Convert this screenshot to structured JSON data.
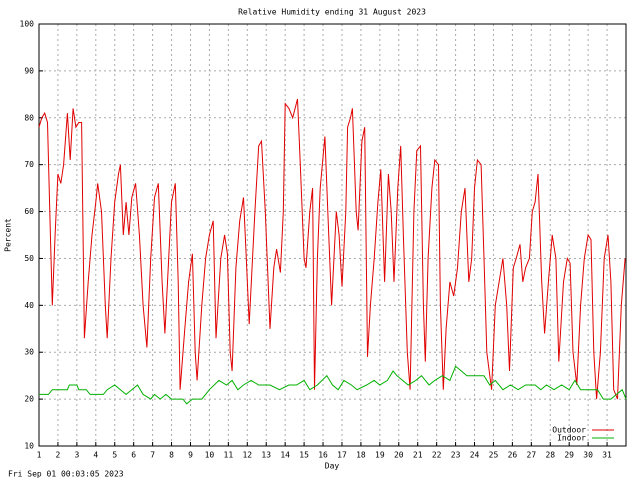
{
  "chart_data": {
    "type": "line",
    "title": "Relative Humidity ending 31 August 2023",
    "y_label": "Percent",
    "x_label": "Day",
    "footer": "Fri Sep 01 00:03:05 2023",
    "xlim": [
      1,
      32
    ],
    "ylim": [
      10,
      100
    ],
    "xticks": [
      1,
      2,
      3,
      4,
      5,
      6,
      7,
      8,
      9,
      10,
      11,
      12,
      13,
      14,
      15,
      16,
      17,
      18,
      19,
      20,
      21,
      22,
      23,
      24,
      25,
      26,
      27,
      28,
      29,
      30,
      31
    ],
    "yticks": [
      10,
      20,
      30,
      40,
      50,
      60,
      70,
      80,
      90,
      100
    ],
    "grid": true,
    "legend": "bottom-right",
    "series": [
      {
        "name": "Outdoor",
        "color": "#e00000",
        "x": [
          1.0,
          1.15,
          1.3,
          1.45,
          1.6,
          1.7,
          1.85,
          2.0,
          2.15,
          2.3,
          2.5,
          2.65,
          2.8,
          2.95,
          3.1,
          3.25,
          3.4,
          3.6,
          3.8,
          4.0,
          4.1,
          4.3,
          4.5,
          4.6,
          4.8,
          5.0,
          5.2,
          5.3,
          5.45,
          5.6,
          5.75,
          5.9,
          6.1,
          6.3,
          6.5,
          6.7,
          6.9,
          7.1,
          7.3,
          7.5,
          7.65,
          7.85,
          8.0,
          8.2,
          8.35,
          8.45,
          8.7,
          8.9,
          9.1,
          9.25,
          9.35,
          9.6,
          9.8,
          10.0,
          10.2,
          10.35,
          10.6,
          10.8,
          10.95,
          11.1,
          11.2,
          11.4,
          11.6,
          11.8,
          11.95,
          12.1,
          12.4,
          12.6,
          12.75,
          12.95,
          13.2,
          13.4,
          13.55,
          13.75,
          13.9,
          14.0,
          14.2,
          14.4,
          14.65,
          14.8,
          15.0,
          15.1,
          15.3,
          15.45,
          15.55,
          15.7,
          15.85,
          16.1,
          16.25,
          16.45,
          16.7,
          16.85,
          17.0,
          17.2,
          17.3,
          17.45,
          17.55,
          17.75,
          17.85,
          18.05,
          18.2,
          18.35,
          18.5,
          18.7,
          18.9,
          19.05,
          19.25,
          19.45,
          19.6,
          19.75,
          19.95,
          20.1,
          20.25,
          20.45,
          20.6,
          20.8,
          20.95,
          21.15,
          21.3,
          21.4,
          21.55,
          21.75,
          21.9,
          22.1,
          22.2,
          22.35,
          22.5,
          22.7,
          22.9,
          23.1,
          23.3,
          23.5,
          23.7,
          23.85,
          24.0,
          24.15,
          24.35,
          24.5,
          24.65,
          24.9,
          25.1,
          25.3,
          25.5,
          25.7,
          25.85,
          26.05,
          26.2,
          26.4,
          26.55,
          26.7,
          26.9,
          27.05,
          27.2,
          27.35,
          27.55,
          27.7,
          27.9,
          28.1,
          28.3,
          28.45,
          28.7,
          28.9,
          29.05,
          29.2,
          29.4,
          29.6,
          29.8,
          30.0,
          30.15,
          30.3,
          30.45,
          30.65,
          30.85,
          31.05,
          31.2,
          31.35,
          31.55,
          31.75,
          31.95
        ],
        "values": [
          78,
          80,
          81,
          79,
          55,
          40,
          55,
          68,
          66,
          70,
          81,
          71,
          82,
          78,
          79,
          79,
          33,
          45,
          55,
          62,
          66,
          60,
          40,
          33,
          50,
          62,
          68,
          70,
          55,
          62,
          55,
          63,
          66,
          55,
          40,
          31,
          50,
          63,
          66,
          45,
          34,
          50,
          62,
          66,
          45,
          22,
          35,
          45,
          51,
          30,
          24,
          40,
          50,
          55,
          58,
          33,
          50,
          55,
          51,
          30,
          26,
          48,
          58,
          63,
          50,
          36,
          60,
          74,
          75,
          60,
          35,
          48,
          52,
          47,
          60,
          83,
          82,
          80,
          84,
          70,
          50,
          48,
          60,
          65,
          22,
          50,
          65,
          76,
          60,
          40,
          60,
          55,
          44,
          60,
          78,
          80,
          82,
          60,
          56,
          75,
          78,
          29,
          40,
          50,
          62,
          69,
          45,
          68,
          60,
          45,
          65,
          74,
          54,
          30,
          22,
          60,
          73,
          74,
          40,
          28,
          50,
          65,
          71,
          70,
          40,
          22,
          35,
          45,
          42,
          48,
          60,
          65,
          45,
          50,
          65,
          71,
          70,
          50,
          30,
          22,
          40,
          45,
          50,
          40,
          26,
          48,
          50,
          53,
          45,
          48,
          50,
          60,
          62,
          68,
          45,
          34,
          45,
          55,
          50,
          28,
          45,
          50,
          49,
          30,
          23,
          40,
          50,
          55,
          54,
          30,
          20,
          30,
          50,
          55,
          45,
          22,
          20,
          40,
          50
        ]
      },
      {
        "name": "Indoor",
        "color": "#00b000",
        "x": [
          1.0,
          1.5,
          1.7,
          2.5,
          2.6,
          3.0,
          3.1,
          3.5,
          3.7,
          4.4,
          4.6,
          5.0,
          5.3,
          5.6,
          5.9,
          6.2,
          6.5,
          6.9,
          7.1,
          7.4,
          7.7,
          8.0,
          8.6,
          8.8,
          9.1,
          9.6,
          10.0,
          10.5,
          10.9,
          11.2,
          11.5,
          11.8,
          12.2,
          12.6,
          13.2,
          13.7,
          14.2,
          14.6,
          15.0,
          15.3,
          15.7,
          16.2,
          16.5,
          16.8,
          17.1,
          17.5,
          17.8,
          18.3,
          18.7,
          19.0,
          19.4,
          19.7,
          19.9,
          20.2,
          20.5,
          20.9,
          21.2,
          21.6,
          21.9,
          22.3,
          22.7,
          23.0,
          23.3,
          23.6,
          24.2,
          24.5,
          24.8,
          25.1,
          25.5,
          25.9,
          26.3,
          26.7,
          27.2,
          27.5,
          27.8,
          28.2,
          28.6,
          29.0,
          29.3,
          29.6,
          30.0,
          30.5,
          30.8,
          31.2,
          31.5,
          31.8,
          32.0
        ],
        "values": [
          21,
          21,
          22,
          22,
          23,
          23,
          22,
          22,
          21,
          21,
          22,
          23,
          22,
          21,
          22,
          23,
          21,
          20,
          21,
          20,
          21,
          20,
          20,
          19,
          20,
          20,
          22,
          24,
          23,
          24,
          22,
          23,
          24,
          23,
          23,
          22,
          23,
          23,
          24,
          22,
          23,
          25,
          23,
          22,
          24,
          23,
          22,
          23,
          24,
          23,
          24,
          26,
          25,
          24,
          23,
          24,
          25,
          23,
          24,
          25,
          24,
          27,
          26,
          25,
          25,
          25,
          23,
          24,
          22,
          23,
          22,
          23,
          23,
          22,
          23,
          22,
          23,
          22,
          24,
          22,
          22,
          22,
          20,
          20,
          21,
          22,
          20
        ]
      }
    ]
  }
}
